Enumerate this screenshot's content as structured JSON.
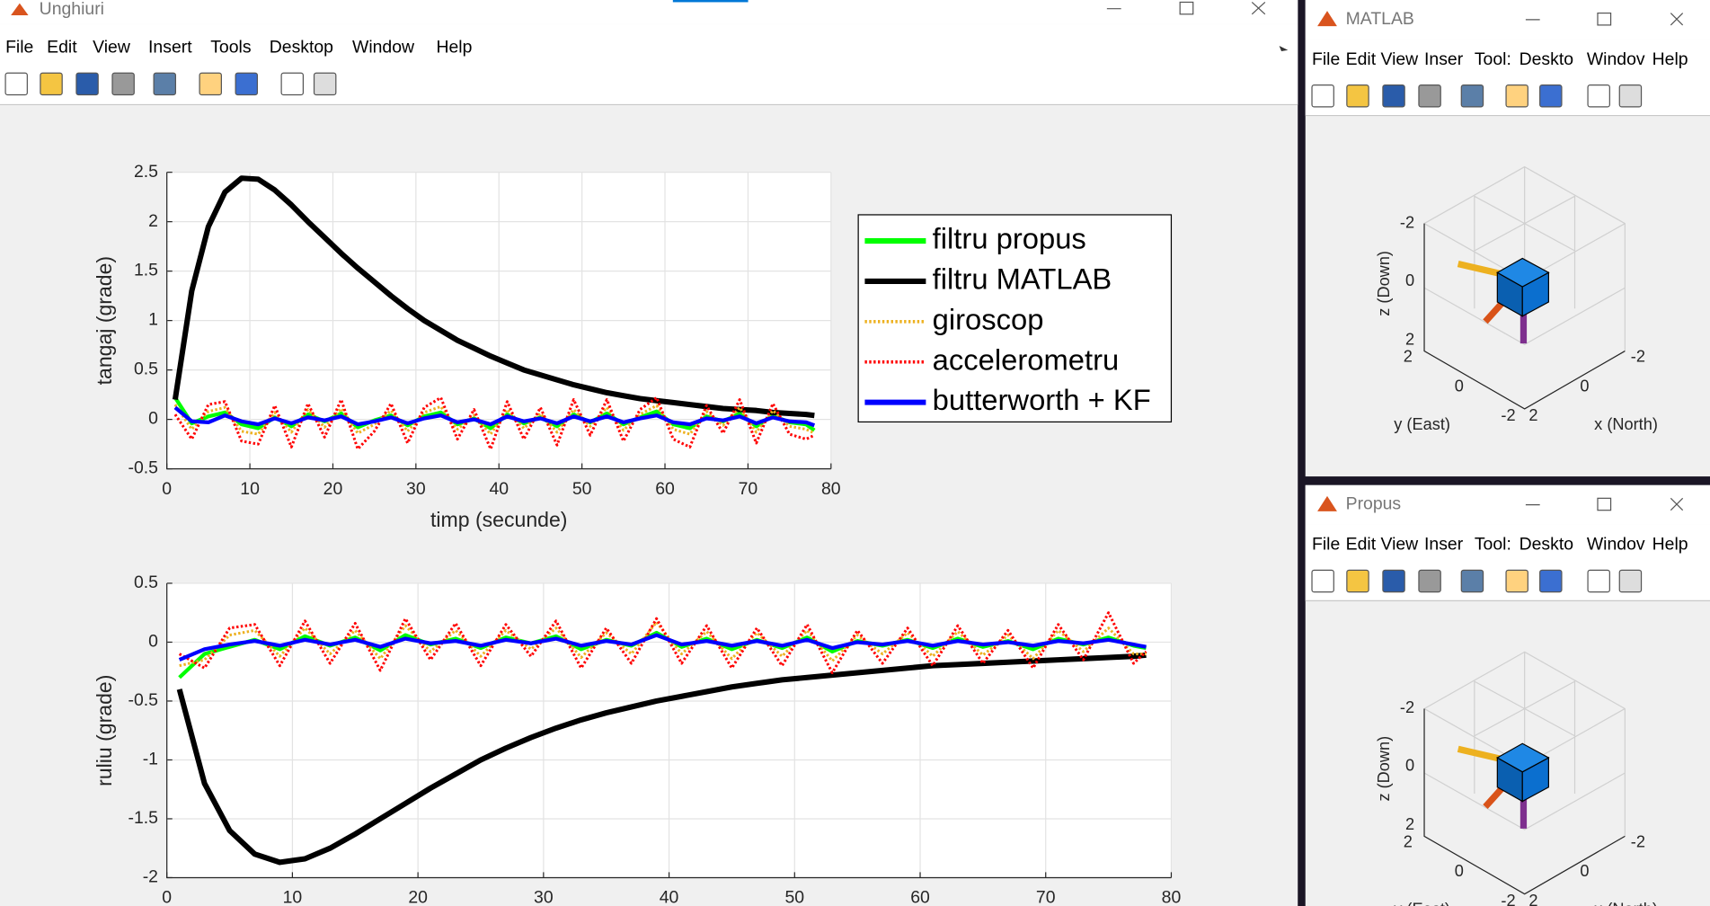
{
  "windows": [
    {
      "title": "Unghiuri",
      "menu": [
        "File",
        "Edit",
        "View",
        "Insert",
        "Tools",
        "Desktop",
        "Window",
        "Help"
      ]
    },
    {
      "title": "MATLAB",
      "menu": [
        "File",
        "Edit",
        "View",
        "Inser",
        "Tool:",
        "Deskto",
        "Windov",
        "Help"
      ],
      "axes": {
        "zlabel": "z (Down)",
        "ylabel": "y (East)",
        "xlabel": "x (North)",
        "zticks": [
          -2,
          0,
          2
        ],
        "yticks": [
          2,
          0,
          -2
        ],
        "xticks": [
          2,
          0,
          -2
        ]
      }
    },
    {
      "title": "Propus",
      "menu": [
        "File",
        "Edit",
        "View",
        "Inser",
        "Tool:",
        "Deskto",
        "Windov",
        "Help"
      ],
      "axes": {
        "zlabel": "z (Down)",
        "ylabel": "y (East)",
        "xlabel": "x (North)",
        "zticks": [
          -2,
          0,
          2
        ],
        "yticks": [
          2,
          0,
          -2
        ],
        "xticks": [
          2,
          0,
          -2
        ]
      }
    }
  ],
  "chart_data": [
    {
      "type": "line",
      "xlabel": "timp (secunde)",
      "ylabel": "tangaj (grade)",
      "xlim": [
        0,
        80
      ],
      "ylim": [
        -0.5,
        2.5
      ],
      "xticks": [
        0,
        10,
        20,
        30,
        40,
        50,
        60,
        70,
        80
      ],
      "yticks": [
        -0.5,
        0,
        0.5,
        1,
        1.5,
        2,
        2.5
      ],
      "grid": true,
      "legend": "east",
      "x": [
        1,
        3,
        5,
        7,
        9,
        11,
        13,
        15,
        17,
        19,
        21,
        23,
        25,
        27,
        29,
        31,
        33,
        35,
        37,
        39,
        41,
        43,
        45,
        47,
        49,
        51,
        53,
        55,
        57,
        59,
        61,
        63,
        65,
        67,
        69,
        71,
        73,
        75,
        77,
        78
      ],
      "series": [
        {
          "name": "filtru propus",
          "color": "#00ff00",
          "style": "solid",
          "values": [
            0.22,
            -0.04,
            0.03,
            0.07,
            -0.05,
            -0.09,
            0.02,
            -0.07,
            0.05,
            -0.02,
            0.06,
            -0.08,
            -0.01,
            0.04,
            -0.06,
            0.03,
            0.07,
            -0.05,
            0.01,
            -0.09,
            0.05,
            -0.04,
            0.02,
            -0.07,
            0.05,
            -0.03,
            0.06,
            -0.05,
            0.02,
            0.08,
            -0.05,
            -0.09,
            0.03,
            -0.02,
            0.06,
            -0.07,
            0.04,
            -0.03,
            -0.05,
            -0.11
          ]
        },
        {
          "name": "filtru MATLAB",
          "color": "#000000",
          "style": "solid",
          "values": [
            0.2,
            1.3,
            1.95,
            2.3,
            2.44,
            2.43,
            2.32,
            2.17,
            2.0,
            1.84,
            1.68,
            1.53,
            1.39,
            1.25,
            1.12,
            1.0,
            0.9,
            0.8,
            0.72,
            0.64,
            0.57,
            0.5,
            0.45,
            0.4,
            0.35,
            0.31,
            0.27,
            0.24,
            0.21,
            0.19,
            0.17,
            0.15,
            0.13,
            0.11,
            0.1,
            0.09,
            0.07,
            0.06,
            0.05,
            0.04
          ]
        },
        {
          "name": "giroscop",
          "color": "#edb120",
          "style": "dotted",
          "values": [
            0.15,
            -0.1,
            0.08,
            0.12,
            -0.12,
            -0.15,
            0.07,
            -0.13,
            0.1,
            -0.08,
            0.11,
            -0.14,
            -0.05,
            0.09,
            -0.12,
            0.07,
            0.13,
            -0.1,
            0.04,
            -0.15,
            0.1,
            -0.09,
            0.06,
            -0.13,
            0.1,
            -0.07,
            0.12,
            -0.11,
            0.05,
            0.14,
            -0.1,
            -0.15,
            0.08,
            -0.06,
            0.12,
            -0.13,
            0.09,
            -0.07,
            -0.1,
            -0.14
          ]
        },
        {
          "name": "accelerometru",
          "color": "#ff0000",
          "style": "dotted",
          "values": [
            0.05,
            -0.2,
            0.15,
            0.18,
            -0.22,
            -0.25,
            0.14,
            -0.28,
            0.16,
            -0.18,
            0.2,
            -0.3,
            -0.12,
            0.16,
            -0.24,
            0.12,
            0.22,
            -0.2,
            0.1,
            -0.3,
            0.18,
            -0.2,
            0.12,
            -0.26,
            0.2,
            -0.16,
            0.2,
            -0.22,
            0.1,
            0.22,
            -0.2,
            -0.28,
            0.14,
            -0.14,
            0.2,
            -0.24,
            0.16,
            -0.15,
            -0.2,
            -0.16
          ]
        },
        {
          "name": "butterworth + KF",
          "color": "#0000ff",
          "style": "solid",
          "values": [
            0.12,
            -0.02,
            -0.03,
            0.04,
            -0.02,
            -0.05,
            0.01,
            -0.04,
            0.02,
            -0.01,
            0.03,
            -0.05,
            -0.02,
            0.02,
            -0.04,
            0.01,
            0.04,
            -0.03,
            0.0,
            -0.05,
            0.03,
            -0.02,
            0.01,
            -0.04,
            0.03,
            -0.02,
            0.03,
            -0.03,
            0.01,
            0.04,
            -0.03,
            -0.05,
            0.01,
            -0.01,
            0.03,
            -0.04,
            0.02,
            -0.02,
            -0.03,
            -0.06
          ]
        }
      ]
    },
    {
      "type": "line",
      "ylabel": "ruliu (grade)",
      "xlim": [
        0,
        80
      ],
      "ylim": [
        -2,
        0.5
      ],
      "xticks": [
        0,
        10,
        20,
        30,
        40,
        50,
        60,
        70,
        80
      ],
      "yticks": [
        -2,
        -1.5,
        -1,
        -0.5,
        0,
        0.5
      ],
      "grid": true,
      "x": [
        1,
        3,
        5,
        7,
        9,
        11,
        13,
        15,
        17,
        19,
        21,
        23,
        25,
        27,
        29,
        31,
        33,
        35,
        37,
        39,
        41,
        43,
        45,
        47,
        49,
        51,
        53,
        55,
        57,
        59,
        61,
        63,
        65,
        67,
        69,
        71,
        73,
        75,
        77,
        78
      ],
      "series": [
        {
          "color": "#00ff00",
          "style": "solid",
          "values": [
            -0.3,
            -0.1,
            -0.04,
            0.02,
            -0.06,
            0.05,
            -0.03,
            0.04,
            -0.07,
            0.06,
            -0.02,
            0.03,
            -0.05,
            0.04,
            -0.01,
            0.05,
            -0.06,
            0.02,
            -0.03,
            0.08,
            -0.04,
            0.03,
            -0.06,
            0.02,
            -0.05,
            0.04,
            -0.08,
            0.01,
            -0.03,
            0.02,
            -0.05,
            0.03,
            -0.04,
            0.01,
            -0.06,
            0.03,
            -0.02,
            0.04,
            -0.03,
            -0.05
          ]
        },
        {
          "color": "#000000",
          "style": "solid",
          "values": [
            -0.4,
            -1.2,
            -1.6,
            -1.8,
            -1.87,
            -1.84,
            -1.75,
            -1.63,
            -1.5,
            -1.37,
            -1.24,
            -1.12,
            -1.0,
            -0.9,
            -0.81,
            -0.73,
            -0.66,
            -0.6,
            -0.55,
            -0.5,
            -0.46,
            -0.42,
            -0.38,
            -0.35,
            -0.32,
            -0.3,
            -0.28,
            -0.26,
            -0.24,
            -0.22,
            -0.2,
            -0.19,
            -0.18,
            -0.17,
            -0.16,
            -0.15,
            -0.14,
            -0.13,
            -0.12,
            -0.11
          ]
        },
        {
          "color": "#edb120",
          "style": "dotted",
          "values": [
            -0.2,
            -0.15,
            0.06,
            0.1,
            -0.12,
            0.12,
            -0.1,
            0.1,
            -0.14,
            0.14,
            -0.08,
            0.1,
            -0.12,
            0.1,
            -0.06,
            0.12,
            -0.13,
            0.08,
            -0.1,
            0.17,
            -0.1,
            0.09,
            -0.14,
            0.08,
            -0.12,
            0.1,
            -0.16,
            0.06,
            -0.1,
            0.08,
            -0.12,
            0.09,
            -0.11,
            0.06,
            -0.14,
            0.1,
            -0.08,
            0.12,
            -0.1,
            -0.1
          ]
        },
        {
          "color": "#ff0000",
          "style": "dotted",
          "values": [
            -0.1,
            -0.22,
            0.12,
            0.15,
            -0.2,
            0.18,
            -0.18,
            0.16,
            -0.24,
            0.2,
            -0.15,
            0.16,
            -0.2,
            0.15,
            -0.12,
            0.18,
            -0.22,
            0.12,
            -0.18,
            0.2,
            -0.18,
            0.14,
            -0.22,
            0.12,
            -0.2,
            0.15,
            -0.26,
            0.1,
            -0.18,
            0.12,
            -0.2,
            0.14,
            -0.18,
            0.1,
            -0.22,
            0.15,
            -0.15,
            0.25,
            -0.18,
            -0.08
          ]
        },
        {
          "color": "#0000ff",
          "style": "solid",
          "values": [
            -0.15,
            -0.06,
            -0.02,
            0.01,
            -0.03,
            0.02,
            -0.02,
            0.02,
            -0.04,
            0.03,
            -0.01,
            0.01,
            -0.03,
            0.02,
            -0.01,
            0.03,
            -0.03,
            0.01,
            -0.02,
            0.06,
            -0.02,
            0.01,
            -0.03,
            0.01,
            -0.03,
            0.02,
            -0.05,
            0.0,
            -0.02,
            0.01,
            -0.03,
            0.01,
            -0.02,
            0.0,
            -0.03,
            0.01,
            -0.01,
            0.02,
            -0.02,
            -0.04
          ]
        }
      ]
    }
  ]
}
